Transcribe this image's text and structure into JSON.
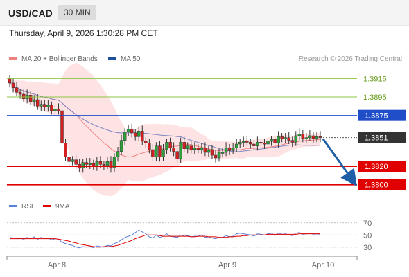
{
  "header": {
    "pair": "USD/CAD",
    "timeframe": "30 MIN"
  },
  "datetime": "Thursday, April 9, 2026 1:30:28 PM CET",
  "legend_main": [
    {
      "label": "MA 20 + Bollinger Bands",
      "color": "#f08080"
    },
    {
      "label": "MA 50",
      "color": "#1f4e9a"
    }
  ],
  "legend_rsi": [
    {
      "label": "RSI",
      "color": "#5b7fd6"
    },
    {
      "label": "9MA",
      "color": "#e00000"
    }
  ],
  "credit": "Research © 2026 Trading Central",
  "chart_data": {
    "type": "candlestick",
    "symbol": "USD/CAD",
    "interval": "30 MIN",
    "x_tick_labels": [
      "Apr 8",
      "Apr 9",
      "Apr 10"
    ],
    "y_range_estimate": [
      1.379,
      1.3925
    ],
    "levels": [
      {
        "value": "1.3915",
        "kind": "resistance",
        "color": "#8dc63f"
      },
      {
        "value": "1.3895",
        "kind": "resistance",
        "color": "#8dc63f"
      },
      {
        "value": "1.3875",
        "kind": "pivot",
        "color": "#1f4ec8"
      },
      {
        "value": "1.3851",
        "kind": "last",
        "color": "#333333"
      },
      {
        "value": "1.3820",
        "kind": "support",
        "color": "#e00000"
      },
      {
        "value": "1.3800",
        "kind": "support",
        "color": "#e00000"
      }
    ],
    "closes_estimate": [
      1.391,
      1.3905,
      1.39,
      1.3898,
      1.3893,
      1.3897,
      1.389,
      1.3892,
      1.3885,
      1.3887,
      1.3884,
      1.3886,
      1.388,
      1.3882,
      1.388,
      1.3845,
      1.383,
      1.3825,
      1.3827,
      1.3822,
      1.3818,
      1.3824,
      1.3822,
      1.3823,
      1.382,
      1.3825,
      1.3822,
      1.3821,
      1.3825,
      1.3818,
      1.383,
      1.3836,
      1.3848,
      1.3857,
      1.386,
      1.3856,
      1.3852,
      1.3858,
      1.3847,
      1.3845,
      1.3838,
      1.383,
      1.3842,
      1.383,
      1.3838,
      1.3846,
      1.384,
      1.3836,
      1.3828,
      1.3846,
      1.3839,
      1.3842,
      1.3838,
      1.384,
      1.3838,
      1.384,
      1.3835,
      1.3838,
      1.3832,
      1.3829,
      1.3835,
      1.3835,
      1.384,
      1.3837,
      1.384,
      1.3844,
      1.3846,
      1.3847,
      1.3846,
      1.3844,
      1.3842,
      1.3846,
      1.3845,
      1.3844,
      1.3847,
      1.3849,
      1.3845,
      1.3852,
      1.385,
      1.3851,
      1.3848,
      1.3846,
      1.3853,
      1.3855,
      1.385,
      1.3851,
      1.3853,
      1.385,
      1.3852,
      1.3851
    ],
    "forecast": {
      "direction": "down",
      "target": "1.3800"
    },
    "rsi": {
      "ticks": [
        "70",
        "50",
        "30"
      ],
      "range": [
        15,
        80
      ],
      "rsi_values": [
        46,
        45,
        44,
        45,
        43,
        46,
        44,
        47,
        43,
        46,
        44,
        45,
        42,
        44,
        43,
        38,
        36,
        34,
        33,
        30,
        29,
        31,
        30,
        31,
        29,
        32,
        31,
        30,
        33,
        32,
        36,
        38,
        42,
        46,
        48,
        50,
        54,
        58,
        55,
        52,
        47,
        45,
        50,
        46,
        48,
        52,
        48,
        47,
        46,
        50,
        48,
        49,
        47,
        48,
        48,
        50,
        46,
        47,
        45,
        44,
        46,
        46,
        49,
        47,
        48,
        52,
        53,
        52,
        51,
        50,
        48,
        52,
        51,
        50,
        52,
        53,
        49,
        53,
        51,
        52,
        50,
        49,
        53,
        54,
        51,
        52,
        53,
        51,
        52,
        51
      ],
      "ma9_values": [
        44,
        44,
        44,
        44,
        44,
        44,
        44,
        44,
        44,
        44,
        44,
        44,
        44,
        44,
        43,
        42,
        41,
        40,
        38,
        37,
        35,
        34,
        33,
        32,
        31,
        30,
        30,
        31,
        31,
        31,
        32,
        33,
        35,
        37,
        39,
        41,
        44,
        46,
        48,
        50,
        50,
        50,
        50,
        49,
        48,
        48,
        48,
        48,
        48,
        48,
        48,
        48,
        47,
        47,
        48,
        48,
        48,
        47,
        47,
        47,
        46,
        46,
        46,
        47,
        47,
        48,
        48,
        49,
        49,
        50,
        50,
        50,
        50,
        50,
        51,
        51,
        51,
        51,
        51,
        51,
        51,
        51,
        51,
        52,
        52,
        52,
        52,
        52,
        52,
        52
      ]
    }
  },
  "labels": {
    "l1": "1.3915",
    "l2": "1.3895",
    "l3": "1.3875",
    "l4": "1.3851",
    "l5": "1.3820",
    "l6": "1.3800",
    "x1": "Apr 8",
    "x2": "Apr 9",
    "x3": "Apr 10",
    "r70": "70",
    "r50": "50",
    "r30": "30"
  }
}
